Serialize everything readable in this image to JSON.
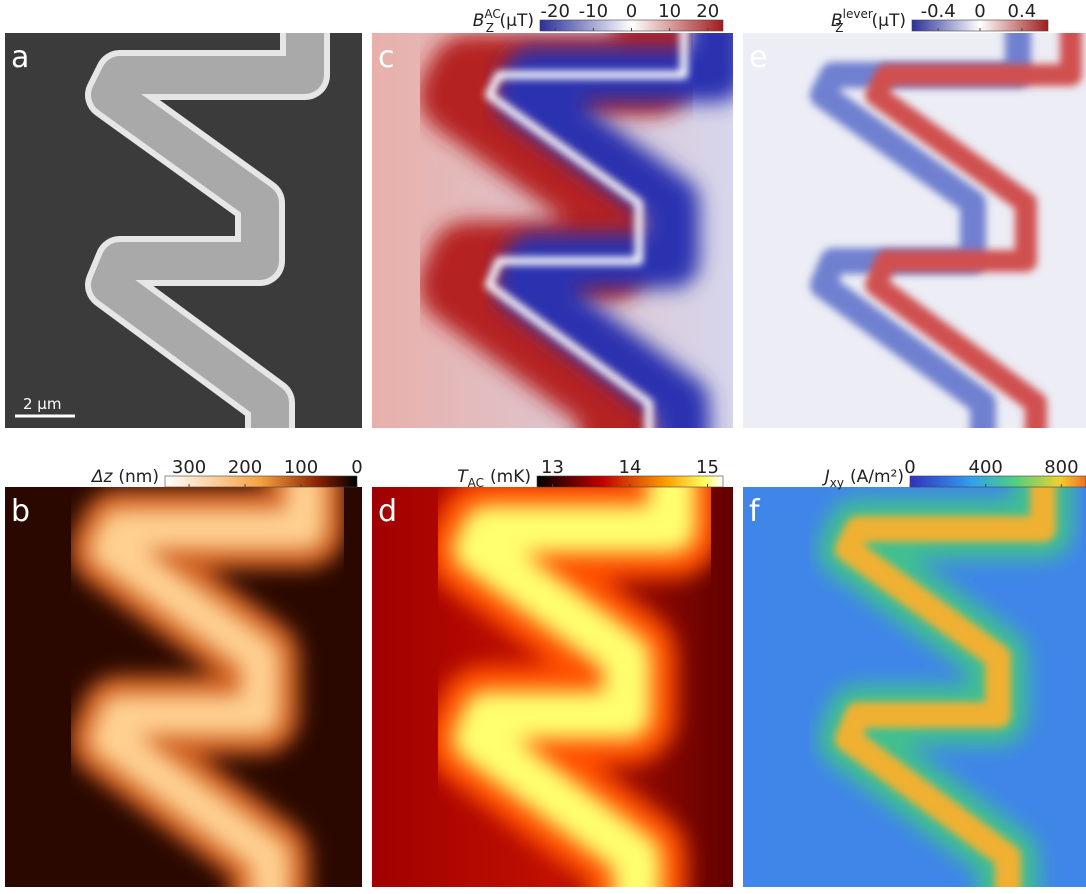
{
  "panels": [
    {
      "label": "a",
      "scale_bar": "2 μm"
    },
    {
      "label": "c",
      "colorbar": {
        "symbol": "B",
        "sub": "Z",
        "sup": "AC",
        "unit": "(μT)",
        "lim": [
          -24,
          24
        ],
        "ticks": [
          -20,
          -10,
          0,
          10,
          20
        ]
      }
    },
    {
      "label": "e",
      "colorbar": {
        "symbol": "B",
        "sub": "Z",
        "sup": "lever",
        "unit": "(μT)",
        "lim": [
          -0.65,
          0.65
        ],
        "ticks": [
          -0.4,
          0,
          0.4
        ]
      }
    },
    {
      "label": "b",
      "colorbar": {
        "symbol": "Δz",
        "unit": "(nm)",
        "lim": [
          343,
          0
        ],
        "ticks": [
          300,
          200,
          100,
          0
        ]
      }
    },
    {
      "label": "d",
      "colorbar": {
        "symbol": "T",
        "sub": "AC",
        "unit": "(mK)",
        "lim": [
          12.8,
          15.2
        ],
        "ticks": [
          13,
          14,
          15
        ]
      }
    },
    {
      "label": "f",
      "colorbar": {
        "symbol": "J",
        "sub": "xy",
        "unit": "(A/m²)",
        "lim": [
          0,
          930
        ],
        "ticks": [
          0,
          400,
          800
        ]
      }
    }
  ]
}
